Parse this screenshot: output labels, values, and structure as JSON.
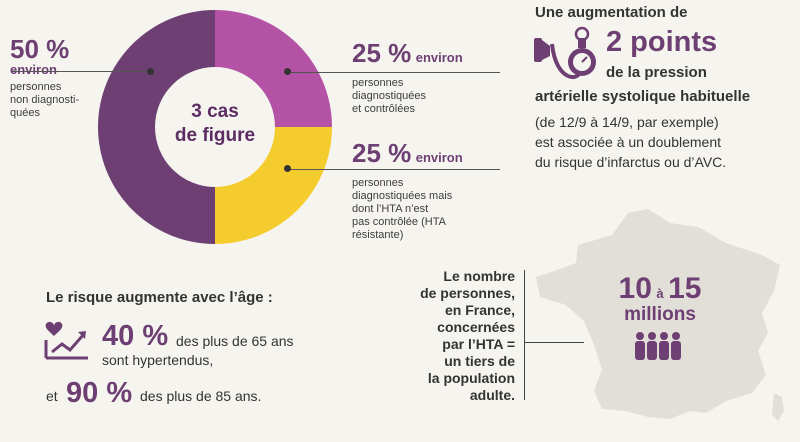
{
  "donut": {
    "center_line1": "3 cas",
    "center_line2": "de figure",
    "segments": [
      {
        "share": 50,
        "color": "#6d3f73"
      },
      {
        "share": 25,
        "color": "#b453a6"
      },
      {
        "share": 25,
        "color": "#f5cc2e"
      }
    ],
    "left": {
      "percent": "50 %",
      "word": "environ",
      "desc": [
        "personnes",
        "non diagnosti-",
        "quées"
      ]
    },
    "top_right": {
      "percent": "25 %",
      "word": "environ",
      "desc": [
        "personnes",
        "diagnostiquées",
        "et contrôlées"
      ]
    },
    "bottom_right": {
      "percent": "25 %",
      "word": "environ",
      "desc": [
        "personnes",
        "diagnostiquées mais",
        "dont l’HTA n’est",
        "pas contrôlée (HTA",
        "résistante)"
      ]
    }
  },
  "blood_pressure": {
    "icon": "blood-pressure-gauge-icon",
    "title": "Une augmentation de",
    "points": "2 points",
    "sub1": "de la pression",
    "sub2": "artérielle systolique habituelle",
    "text": [
      "(de 12/9 à 14/9, par exemple)",
      "est associée à un doublement",
      "du risque d’infarctus ou d’AVC."
    ]
  },
  "risk": {
    "title": "Le risque augmente avec l’âge :",
    "icon": "heart-growth-chart-icon",
    "pct1": "40 %",
    "text1a": "des plus de 65 ans",
    "text1b": "sont hypertendus,",
    "prefix2": "et",
    "pct2": "90 %",
    "text2": "des plus de 85 ans."
  },
  "france": {
    "map_color": "#e2dfd8",
    "text": [
      "Le nombre",
      "de personnes,",
      "en France,",
      "concernées",
      "par l’HTA =",
      "un tiers de",
      "la population",
      "adulte."
    ],
    "n1": "10",
    "a": "à",
    "n2": "15",
    "millions": "millions",
    "icon": "people-group-icon"
  }
}
